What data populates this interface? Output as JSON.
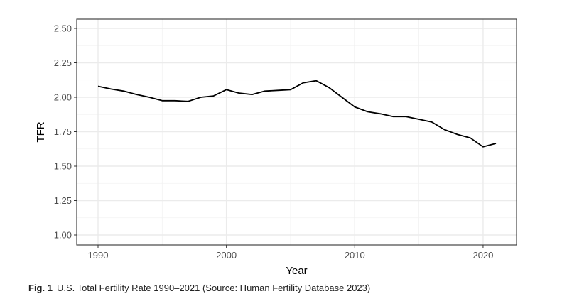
{
  "chart_data": {
    "type": "line",
    "title": "",
    "xlabel": "Year",
    "ylabel": "TFR",
    "xlim": [
      1990,
      2021
    ],
    "ylim": [
      1.0,
      2.5
    ],
    "x_ticks": [
      1990,
      2000,
      2010,
      2020
    ],
    "x_tick_labels": [
      "1990",
      "2000",
      "2010",
      "2020"
    ],
    "y_ticks": [
      1.0,
      1.25,
      1.5,
      1.75,
      2.0,
      2.25,
      2.5
    ],
    "y_tick_labels": [
      "1.00",
      "1.25",
      "1.50",
      "1.75",
      "2.00",
      "2.25",
      "2.50"
    ],
    "grid": true,
    "line_color": "#000000",
    "series": [
      {
        "x": [
          1990,
          1991,
          1992,
          1993,
          1994,
          1995,
          1996,
          1997,
          1998,
          1999,
          2000,
          2001,
          2002,
          2003,
          2004,
          2005,
          2006,
          2007,
          2008,
          2009,
          2010,
          2011,
          2012,
          2013,
          2014,
          2015,
          2016,
          2017,
          2018,
          2019,
          2020,
          2021
        ],
        "values": [
          2.08,
          2.06,
          2.045,
          2.02,
          2.0,
          1.975,
          1.975,
          1.97,
          2.0,
          2.01,
          2.055,
          2.03,
          2.02,
          2.045,
          2.05,
          2.055,
          2.105,
          2.12,
          2.07,
          2.0,
          1.93,
          1.895,
          1.88,
          1.86,
          1.86,
          1.84,
          1.82,
          1.765,
          1.73,
          1.705,
          1.64,
          1.665
        ]
      }
    ]
  },
  "caption": {
    "label": "Fig. 1",
    "text": "U.S. Total Fertility Rate 1990–2021 (Source: Human Fertility Database 2023)"
  }
}
